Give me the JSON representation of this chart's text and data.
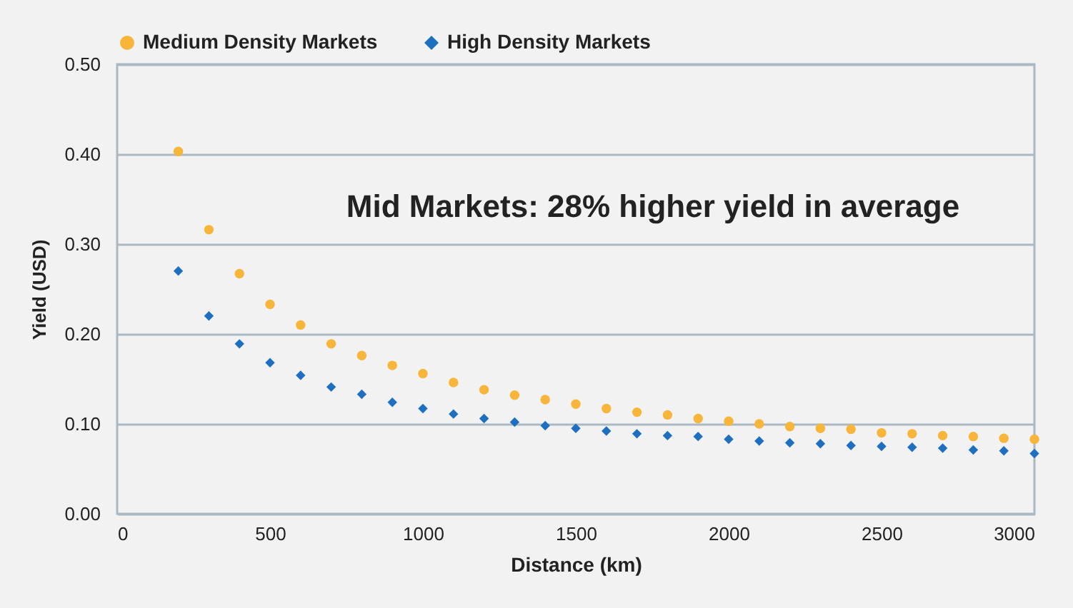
{
  "chart_data": {
    "type": "scatter",
    "xlabel": "Distance (km)",
    "ylabel": "Yield (USD)",
    "annotations": [
      "Mid Markets: 28% higher yield in average"
    ],
    "x": [
      200,
      300,
      400,
      500,
      600,
      700,
      800,
      900,
      1000,
      1100,
      1200,
      1300,
      1400,
      1500,
      1600,
      1700,
      1800,
      1900,
      2000,
      2100,
      2200,
      2300,
      2400,
      2500,
      2600,
      2700,
      2800,
      2900,
      3000
    ],
    "series": [
      {
        "name": "Medium Density Markets",
        "color": "#f7b53a",
        "marker": "circle",
        "values": [
          0.403,
          0.316,
          0.267,
          0.233,
          0.21,
          0.189,
          0.176,
          0.165,
          0.156,
          0.146,
          0.138,
          0.132,
          0.127,
          0.122,
          0.117,
          0.113,
          0.11,
          0.106,
          0.103,
          0.1,
          0.097,
          0.095,
          0.094,
          0.09,
          0.089,
          0.087,
          0.086,
          0.084,
          0.083
        ]
      },
      {
        "name": "High Density Markets",
        "color": "#1f6fc0",
        "marker": "diamond",
        "values": [
          0.27,
          0.22,
          0.189,
          0.168,
          0.154,
          0.141,
          0.133,
          0.124,
          0.117,
          0.111,
          0.106,
          0.102,
          0.098,
          0.095,
          0.092,
          0.089,
          0.087,
          0.086,
          0.083,
          0.081,
          0.079,
          0.078,
          0.076,
          0.075,
          0.074,
          0.073,
          0.071,
          0.07,
          0.067
        ]
      }
    ],
    "xlim": [
      0,
      3000
    ],
    "xticks": [
      0,
      500,
      1000,
      1500,
      2000,
      2500,
      3000
    ],
    "ylim": [
      0,
      0.5
    ],
    "yticks": [
      {
        "value": 0,
        "label": "0.00"
      },
      {
        "value": 0.1,
        "label": "0.10"
      },
      {
        "value": 0.2,
        "label": "0.20"
      },
      {
        "value": 0.3,
        "label": "0.30"
      },
      {
        "value": 0.4,
        "label": "0.40"
      },
      {
        "value": 0.5,
        "label": "0.50"
      }
    ],
    "grid": "y",
    "legend": "top"
  }
}
